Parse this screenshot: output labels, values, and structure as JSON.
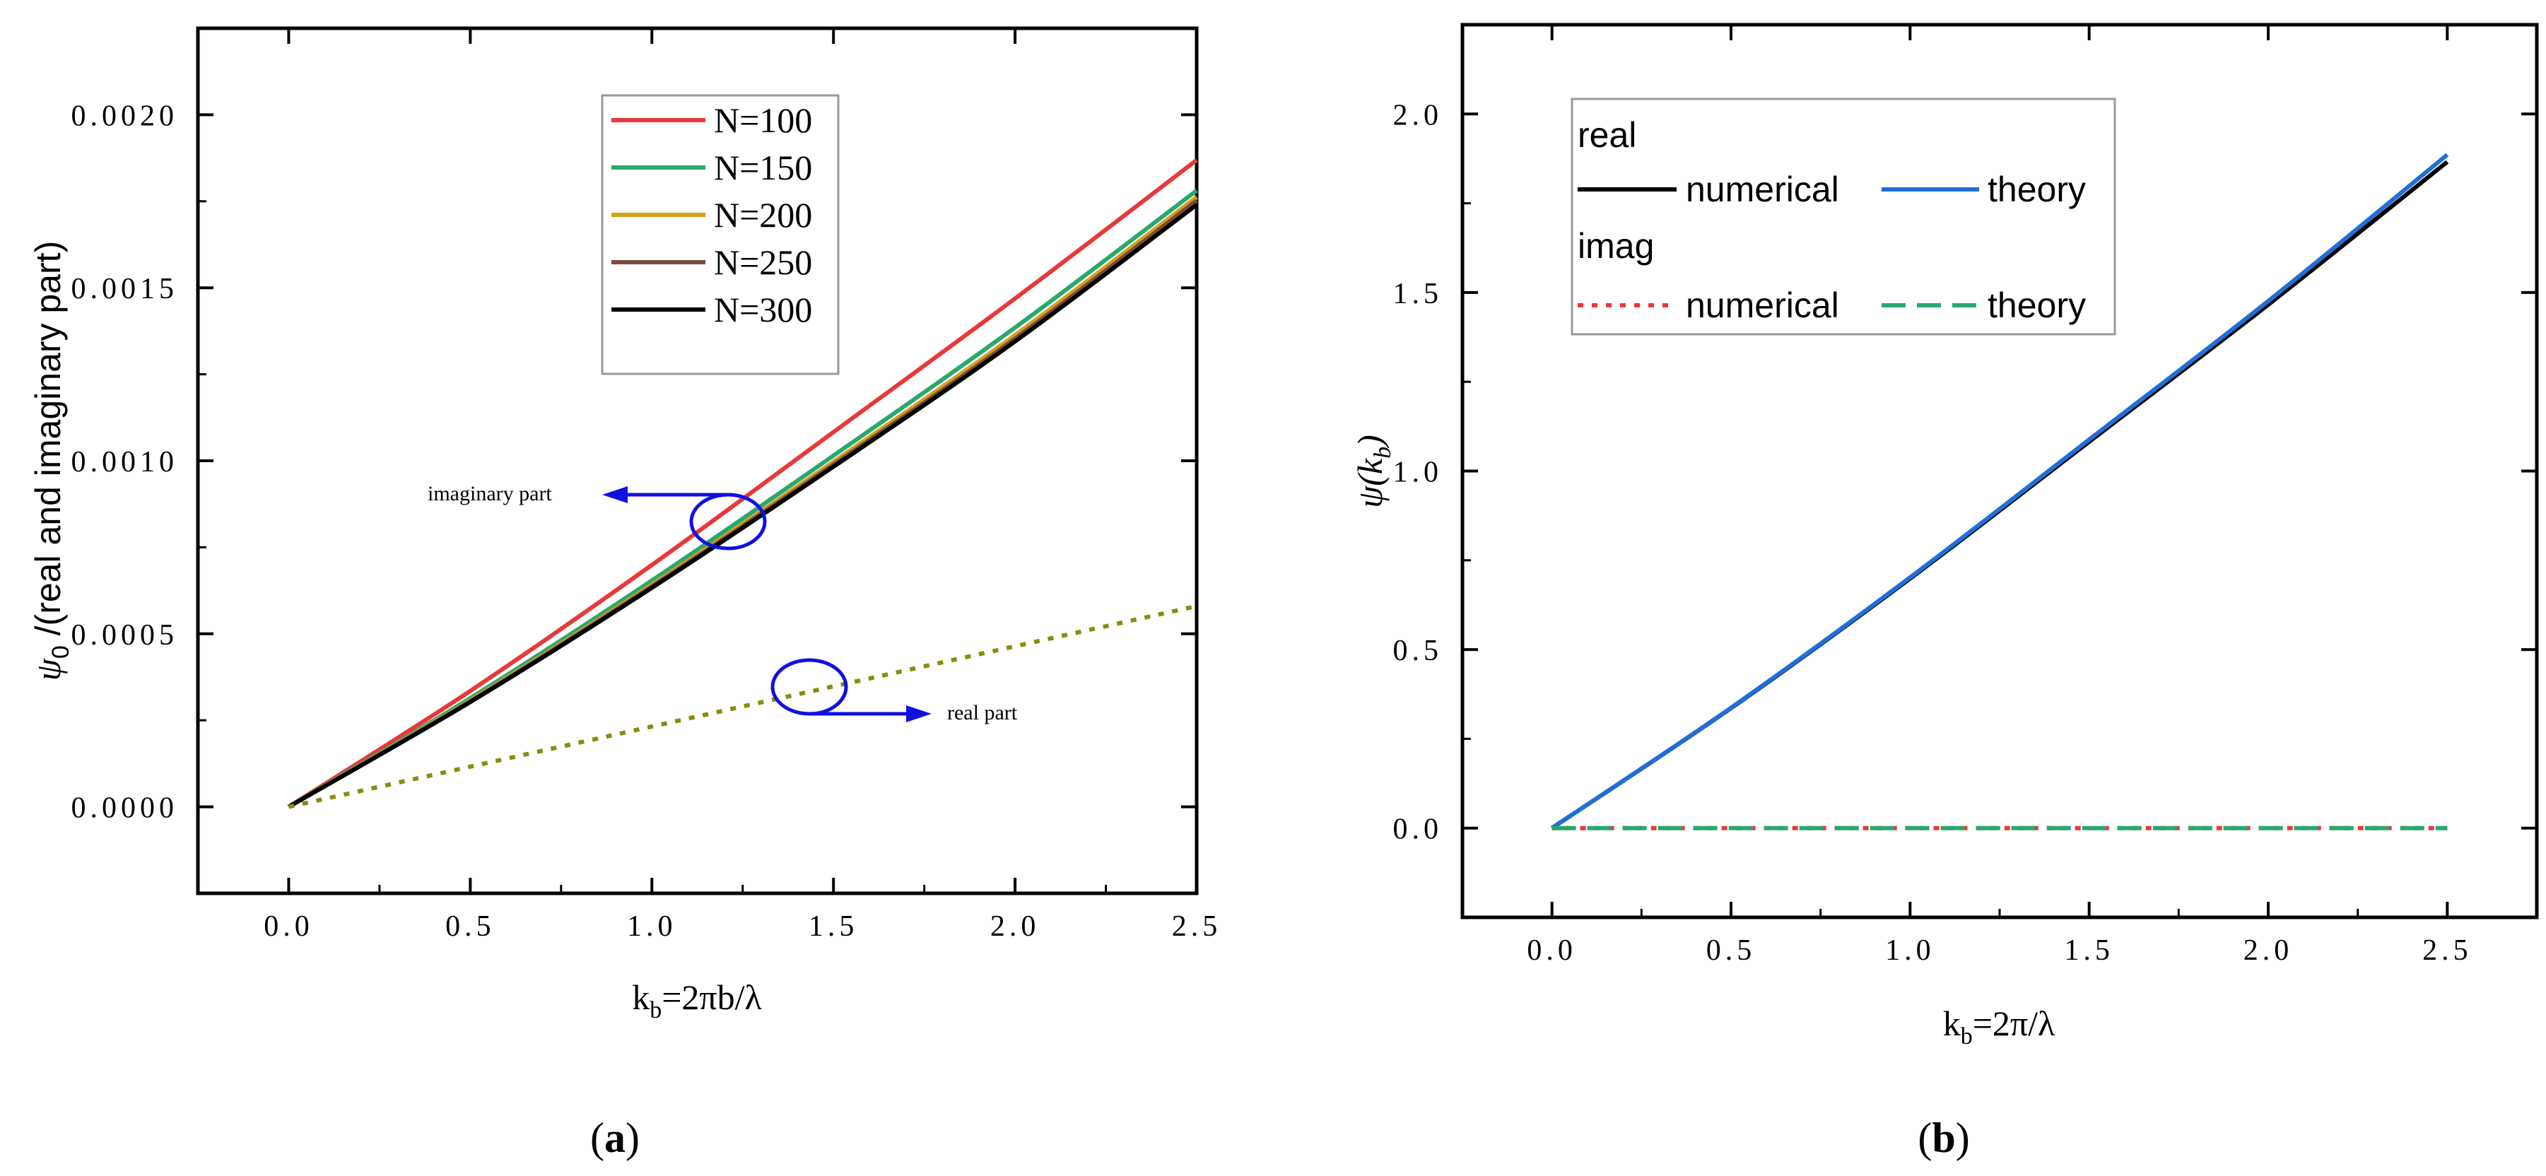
{
  "chart_data": [
    {
      "type": "line",
      "panel_label": "(a)",
      "panel_letter": "a",
      "xlabel": "k_b=2πb/λ",
      "xlabel_main": "k",
      "xlabel_sub": "b",
      "xlabel_rest": "=2πb/λ",
      "ylabel": "ψ0 /(real and imaginary part)",
      "ylabel_main": "ψ",
      "ylabel_sub": "0",
      "ylabel_rest": " /(real and imaginary part)",
      "xlim": [
        -0.25,
        2.5
      ],
      "ylim": [
        -0.00025,
        0.00225
      ],
      "xticks": [
        0.0,
        0.5,
        1.0,
        1.5,
        2.0,
        2.5
      ],
      "xtick_labels": [
        "0.0",
        "0.5",
        "1.0",
        "1.5",
        "2.0",
        "2.5"
      ],
      "yticks": [
        0.0,
        0.0005,
        0.001,
        0.0015,
        0.002
      ],
      "ytick_labels": [
        "0.0000",
        "0.0005",
        "0.0010",
        "0.0015",
        "0.0020"
      ],
      "series": [
        {
          "name": "N=100",
          "color": "#e8393a",
          "dash": "solid",
          "x": [
            0,
            0.5,
            1.0,
            1.5,
            2.0,
            2.5
          ],
          "values": [
            0,
            0.000335,
            0.000699,
            0.001083,
            0.001469,
            0.001869
          ]
        },
        {
          "name": "N=150",
          "color": "#2aa86e",
          "dash": "solid",
          "x": [
            0,
            0.5,
            1.0,
            1.5,
            2.0,
            2.5
          ],
          "values": [
            0,
            0.000314,
            0.000654,
            0.001015,
            0.001385,
            0.001781
          ]
        },
        {
          "name": "N=200",
          "color": "#d4a017",
          "dash": "solid",
          "x": [
            0,
            0.5,
            1.0,
            1.5,
            2.0,
            2.5
          ],
          "values": [
            0,
            0.000308,
            0.000642,
            0.000997,
            0.001363,
            0.001762
          ]
        },
        {
          "name": "N=250",
          "color": "#7b4a3a",
          "dash": "solid",
          "x": [
            0,
            0.5,
            1.0,
            1.5,
            2.0,
            2.5
          ],
          "values": [
            0,
            0.000305,
            0.000637,
            0.000989,
            0.001353,
            0.001752
          ]
        },
        {
          "name": "N=300",
          "color": "#000000",
          "dash": "solid",
          "x": [
            0,
            0.5,
            1.0,
            1.5,
            2.0,
            2.5
          ],
          "values": [
            0,
            0.000303,
            0.000633,
            0.000983,
            0.001345,
            0.00174
          ]
        },
        {
          "name": "real part",
          "color": "#8a8a10",
          "dash": "dotted",
          "legend": false,
          "x": [
            0,
            2.5
          ],
          "values": [
            0,
            0.00058
          ]
        }
      ],
      "annotations": [
        {
          "text": "imaginary part",
          "x": 1.22,
          "y": 0.00082,
          "arrow_to": [
            0.86,
            0.0009
          ]
        },
        {
          "text": "real part",
          "x": 1.43,
          "y": 0.00034,
          "arrow_to": [
            1.78,
            0.00027
          ]
        }
      ],
      "legend_position": "top-center"
    },
    {
      "type": "line",
      "panel_label": "(b)",
      "panel_letter": "b",
      "xlabel": "k_b=2π/λ",
      "xlabel_main": "k",
      "xlabel_sub": "b",
      "xlabel_rest": "=2π/λ",
      "ylabel": "ψ(k_b)",
      "ylabel_main": "ψ(k",
      "ylabel_sub": "b",
      "ylabel_rest": ")",
      "xlim": [
        -0.25,
        2.75
      ],
      "ylim": [
        -0.25,
        2.25
      ],
      "xticks": [
        0.0,
        0.5,
        1.0,
        1.5,
        2.0,
        2.5
      ],
      "xtick_labels": [
        "0.0",
        "0.5",
        "1.0",
        "1.5",
        "2.0",
        "2.5"
      ],
      "yticks": [
        0.0,
        0.5,
        1.0,
        1.5,
        2.0
      ],
      "ytick_labels": [
        "0.0",
        "0.5",
        "1.0",
        "1.5",
        "2.0"
      ],
      "legend_groups": [
        "real",
        "imag"
      ],
      "series": [
        {
          "name": "numerical",
          "group": "real",
          "color": "#000000",
          "dash": "solid",
          "x": [
            0,
            0.5,
            1.0,
            1.5,
            2.0,
            2.5
          ],
          "values": [
            0,
            0.336,
            0.699,
            1.082,
            1.466,
            1.866
          ]
        },
        {
          "name": "theory",
          "group": "real",
          "color": "#1f6fd6",
          "dash": "solid",
          "x": [
            0,
            0.5,
            1.0,
            1.5,
            2.0,
            2.5
          ],
          "values": [
            0,
            0.337,
            0.702,
            1.088,
            1.476,
            1.886
          ]
        },
        {
          "name": "numerical",
          "group": "imag",
          "color": "#e8393a",
          "dash": "dotted",
          "x": [
            0,
            2.5
          ],
          "values": [
            0,
            0
          ]
        },
        {
          "name": "theory",
          "group": "imag",
          "color": "#2aa86e",
          "dash": "dashed",
          "x": [
            0,
            2.5
          ],
          "values": [
            0,
            0
          ]
        }
      ],
      "legend_position": "top-left"
    }
  ]
}
